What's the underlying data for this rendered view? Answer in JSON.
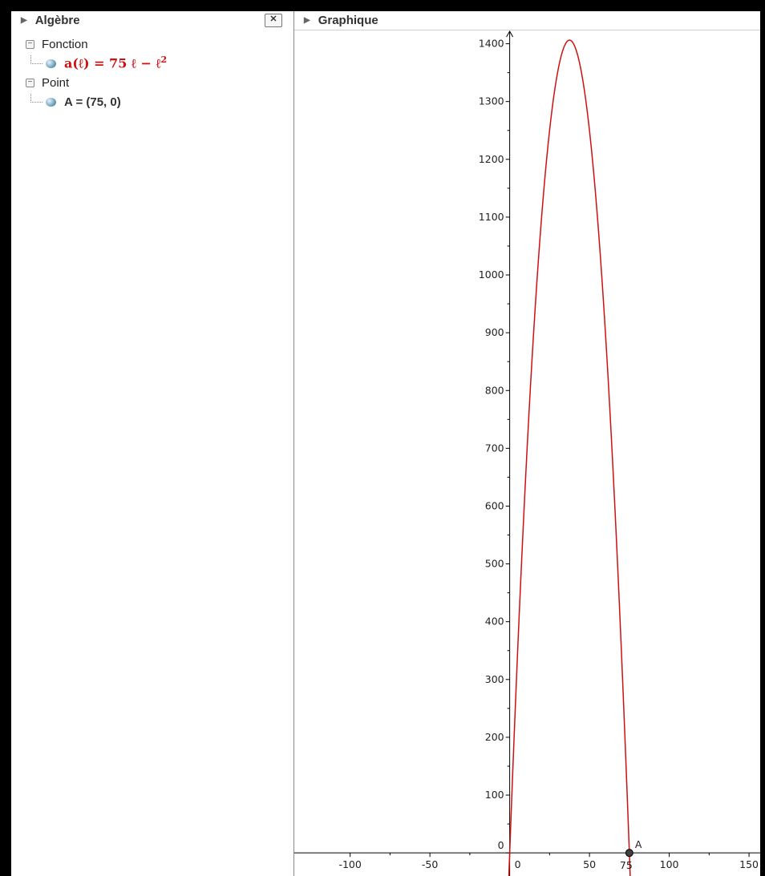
{
  "algebra": {
    "title": "Algèbre",
    "close_label": "✕",
    "groups": [
      {
        "label": "Fonction",
        "items": [
          {
            "lhs": "a(ℓ) = 75 ℓ − ℓ",
            "exponent": "2"
          }
        ]
      },
      {
        "label": "Point",
        "items": [
          {
            "text": "A = (75, 0)"
          }
        ]
      }
    ]
  },
  "graphics": {
    "title": "Graphique",
    "colors": {
      "curve": "#d01010",
      "axis": "#000000",
      "point": "#404040"
    },
    "point": {
      "name": "A",
      "x": 75,
      "y": 0,
      "x_label": "75"
    }
  },
  "chart_data": {
    "type": "line",
    "function": "a(ℓ) = 75ℓ − ℓ²",
    "xlim": [
      -135,
      157
    ],
    "ylim": [
      -40,
      1423
    ],
    "x_ticks": [
      -100,
      -50,
      0,
      50,
      100,
      150
    ],
    "x_tick_labels": [
      "-100",
      "-50",
      "0",
      "50",
      "100",
      "150"
    ],
    "y_ticks": [
      0,
      100,
      200,
      300,
      400,
      500,
      600,
      700,
      800,
      900,
      1000,
      1100,
      1200,
      1300,
      1400
    ],
    "y_tick_labels": [
      "0",
      "100",
      "200",
      "300",
      "400",
      "500",
      "600",
      "700",
      "800",
      "900",
      "1000",
      "1100",
      "1200",
      "1300",
      "1400"
    ],
    "grid": false
  }
}
